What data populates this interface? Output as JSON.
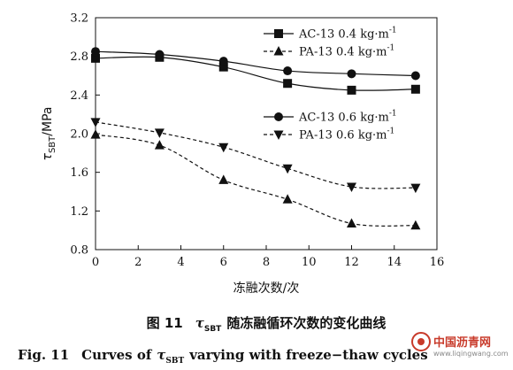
{
  "chart_data": {
    "type": "line",
    "xlabel": "冻融次数/次",
    "ylabel_main": "τ",
    "ylabel_sub": "SBT",
    "ylabel_unit": "/MPa",
    "xlim": [
      0,
      16
    ],
    "ylim": [
      0.8,
      3.2
    ],
    "xticks": [
      "0",
      "2",
      "4",
      "6",
      "8",
      "10",
      "12",
      "14",
      "16"
    ],
    "yticks": [
      "0.8",
      "1.2",
      "1.6",
      "2.0",
      "2.4",
      "2.8",
      "3.2"
    ],
    "grid": false,
    "legend_position": "top-right",
    "x": [
      0,
      3,
      6,
      9,
      12,
      15
    ],
    "series": [
      {
        "name": "AC-13 0.4 kg·m",
        "sup": "-1",
        "marker": "square",
        "line": "solid",
        "values": [
          2.78,
          2.79,
          2.69,
          2.52,
          2.45,
          2.46
        ]
      },
      {
        "name": "PA-13 0.4 kg·m",
        "sup": "-1",
        "marker": "triangle-up",
        "line": "dashed",
        "values": [
          1.99,
          1.88,
          1.52,
          1.32,
          1.07,
          1.05
        ]
      },
      {
        "name": "AC-13 0.6 kg·m",
        "sup": "-1",
        "marker": "circle",
        "line": "solid",
        "values": [
          2.85,
          2.82,
          2.75,
          2.65,
          2.62,
          2.6
        ]
      },
      {
        "name": "PA-13 0.6 kg·m",
        "sup": "-1",
        "marker": "triangle-down",
        "line": "dashed",
        "values": [
          2.12,
          2.01,
          1.86,
          1.64,
          1.45,
          1.44
        ]
      }
    ]
  },
  "caption": {
    "cn_prefix": "图 11",
    "cn_tau": "τ",
    "cn_sub": "SBT",
    "cn_rest": "随冻融循环次数的变化曲线",
    "en_prefix": "Fig. 11",
    "en_mid": "Curves of",
    "en_tau": "τ",
    "en_sub": "SBT",
    "en_rest": "varying with freeze−thaw cycles"
  },
  "watermark": {
    "name": "中国沥青网",
    "url": "www.liqingwang.com",
    "color": "#c83a2a"
  }
}
